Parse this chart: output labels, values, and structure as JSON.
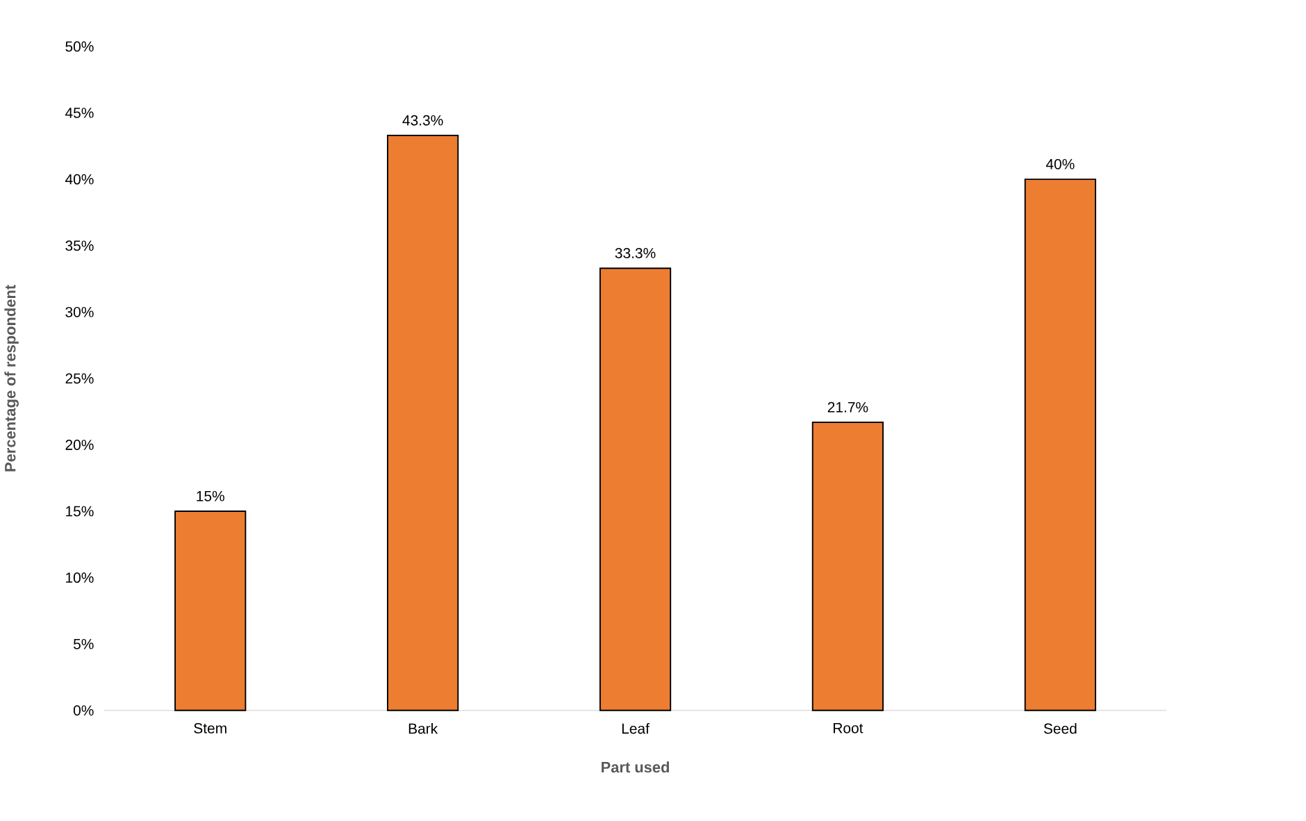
{
  "chart_data": {
    "type": "bar",
    "xlabel": "Part used",
    "ylabel": "Percentage of respondent",
    "categories": [
      "Stem",
      "Bark",
      "Leaf",
      "Root",
      "Seed"
    ],
    "values": [
      15,
      43.3,
      33.3,
      21.7,
      40
    ],
    "value_labels": [
      "15%",
      "43.3%",
      "33.3%",
      "21.7%",
      "40%"
    ],
    "color": "#ed7d31",
    "ylim": [
      0,
      50
    ],
    "yticks": [
      {
        "value": 0,
        "label": "0%"
      },
      {
        "value": 5,
        "label": "5%"
      },
      {
        "value": 10,
        "label": "10%"
      },
      {
        "value": 15,
        "label": "15%"
      },
      {
        "value": 20,
        "label": "20%"
      },
      {
        "value": 25,
        "label": "25%"
      },
      {
        "value": 30,
        "label": "30%"
      },
      {
        "value": 35,
        "label": "35%"
      },
      {
        "value": 40,
        "label": "40%"
      },
      {
        "value": 45,
        "label": "45%"
      },
      {
        "value": 50,
        "label": "50%"
      }
    ]
  }
}
